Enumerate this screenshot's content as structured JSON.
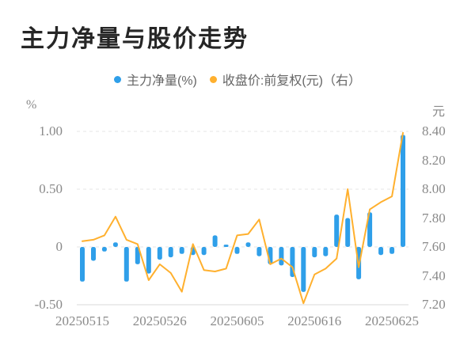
{
  "title": "主力净量与股价走势",
  "legend": {
    "items": [
      {
        "label": "主力净量(%)",
        "color": "#2f9fe9",
        "marker": "circle"
      },
      {
        "label": "收盘价:前复权(元)（右）",
        "color": "#ffb02e",
        "marker": "circle"
      }
    ]
  },
  "colors": {
    "bar": "#2f9fe9",
    "line": "#ffb02e",
    "grid": "#e5e5e5",
    "axis_line": "#d9d9d9",
    "tick_text": "#8a8a8a",
    "title_text": "#262626",
    "legend_text": "#666666",
    "background": "#ffffff"
  },
  "left_axis": {
    "unit": "%",
    "tick_labels": [
      "1.00",
      "0.50",
      "0",
      "-0.50"
    ],
    "tick_values": [
      1.0,
      0.5,
      0,
      -0.5
    ],
    "range": [
      -0.5,
      1.0
    ]
  },
  "right_axis": {
    "unit": "元",
    "tick_labels": [
      "8.40",
      "8.20",
      "8.00",
      "7.80",
      "7.60",
      "7.40",
      "7.20"
    ],
    "tick_values": [
      8.4,
      8.2,
      8.0,
      7.8,
      7.6,
      7.4,
      7.2
    ],
    "range": [
      7.2,
      8.4
    ]
  },
  "chart_data": {
    "type": "combo",
    "x_count": 30,
    "x_tick_labels": [
      {
        "index": 0,
        "label": "20250515"
      },
      {
        "index": 7,
        "label": "20250526"
      },
      {
        "index": 14,
        "label": "20250605"
      },
      {
        "index": 21,
        "label": "20250616"
      },
      {
        "index": 28,
        "label": "20250625"
      }
    ],
    "series": [
      {
        "name": "主力净量(%)",
        "type": "bar",
        "y_axis": "left",
        "values": [
          -0.3,
          -0.12,
          -0.04,
          0.04,
          -0.3,
          -0.15,
          -0.23,
          -0.11,
          -0.09,
          -0.06,
          -0.07,
          -0.07,
          0.1,
          0.02,
          -0.06,
          0.04,
          -0.08,
          -0.15,
          -0.16,
          -0.26,
          -0.39,
          -0.09,
          -0.08,
          0.28,
          0.25,
          -0.28,
          0.3,
          -0.07,
          -0.06,
          0.97
        ]
      },
      {
        "name": "收盘价:前复权(元)（右）",
        "type": "line",
        "y_axis": "right",
        "values": [
          7.64,
          7.65,
          7.68,
          7.81,
          7.65,
          7.62,
          7.37,
          7.48,
          7.42,
          7.29,
          7.62,
          7.44,
          7.43,
          7.45,
          7.68,
          7.69,
          7.79,
          7.48,
          7.52,
          7.46,
          7.21,
          7.41,
          7.45,
          7.52,
          8.0,
          7.46,
          7.86,
          7.91,
          7.95,
          8.39
        ]
      }
    ],
    "grid_dashed_at_left_values": [
      1.0,
      0.5,
      0
    ],
    "axis_line_at_left_value": -0.5,
    "legend_position": "top-center"
  }
}
